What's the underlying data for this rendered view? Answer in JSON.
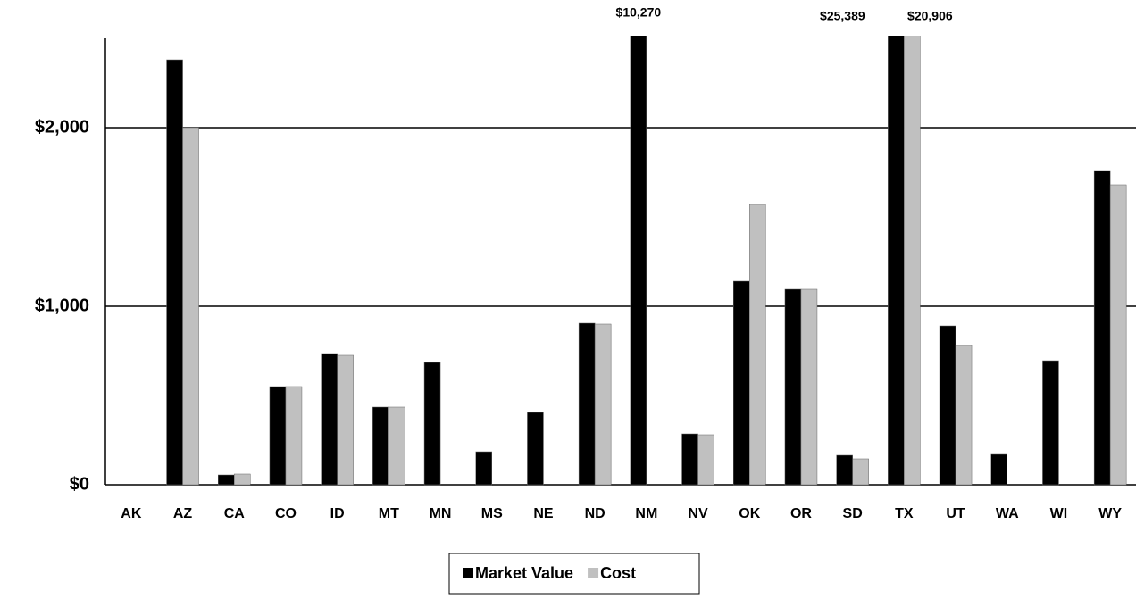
{
  "chart_data": {
    "type": "bar",
    "categories": [
      "AK",
      "AZ",
      "CA",
      "CO",
      "ID",
      "MT",
      "MN",
      "MS",
      "NE",
      "ND",
      "NM",
      "NV",
      "OK",
      "OR",
      "SD",
      "TX",
      "UT",
      "WA",
      "WI",
      "WY"
    ],
    "series": [
      {
        "name": "Market Value",
        "color": "#000000",
        "values": [
          0,
          2380,
          55,
          550,
          735,
          435,
          685,
          185,
          405,
          905,
          10270,
          285,
          1140,
          1095,
          165,
          25389,
          890,
          170,
          695,
          1760
        ],
        "value_labels": [
          null,
          null,
          null,
          null,
          null,
          null,
          null,
          null,
          null,
          null,
          "$10,270",
          null,
          null,
          null,
          null,
          "$25,389",
          null,
          null,
          null,
          null
        ]
      },
      {
        "name": "Cost",
        "color": "#c0c0c0",
        "values": [
          0,
          2000,
          60,
          550,
          725,
          435,
          0,
          0,
          0,
          900,
          0,
          280,
          1570,
          1095,
          145,
          20906,
          780,
          0,
          0,
          1680
        ],
        "value_labels": [
          null,
          null,
          null,
          null,
          null,
          null,
          null,
          null,
          null,
          null,
          null,
          null,
          null,
          null,
          null,
          "$20,906",
          null,
          null,
          null,
          null
        ]
      }
    ],
    "ylim": [
      0,
      2500
    ],
    "yticks": [
      {
        "value": 0,
        "label": "$0"
      },
      {
        "value": 1000,
        "label": "$1,000"
      },
      {
        "value": 2000,
        "label": "$2,000"
      }
    ],
    "grid": true
  }
}
